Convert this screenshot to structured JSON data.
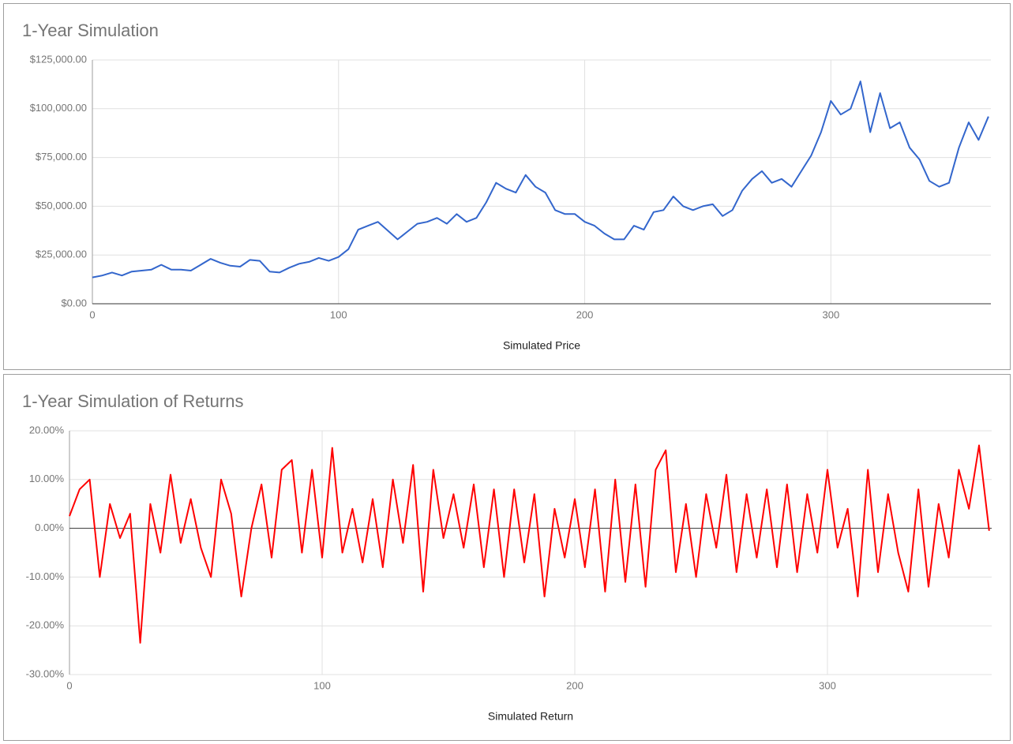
{
  "chart_data": [
    {
      "type": "line",
      "title": "1-Year Simulation",
      "x_label": "Simulated Price",
      "color": "#3366cc",
      "x": [
        0,
        4,
        8,
        12,
        16,
        20,
        24,
        28,
        32,
        36,
        40,
        44,
        48,
        52,
        56,
        60,
        64,
        68,
        72,
        76,
        80,
        84,
        88,
        92,
        96,
        100,
        104,
        108,
        112,
        116,
        120,
        124,
        128,
        132,
        136,
        140,
        144,
        148,
        152,
        156,
        160,
        164,
        168,
        172,
        176,
        180,
        184,
        188,
        192,
        196,
        200,
        204,
        208,
        212,
        216,
        220,
        224,
        228,
        232,
        236,
        240,
        244,
        248,
        252,
        256,
        260,
        264,
        268,
        272,
        276,
        280,
        284,
        288,
        292,
        296,
        300,
        304,
        308,
        312,
        316,
        320,
        324,
        328,
        332,
        336,
        340,
        344,
        348,
        352,
        356,
        360,
        364
      ],
      "values": [
        13500,
        14500,
        16000,
        14500,
        16500,
        17000,
        17500,
        20000,
        17500,
        17500,
        17000,
        20000,
        23000,
        21000,
        19500,
        19000,
        22500,
        22000,
        16500,
        16000,
        18500,
        20500,
        21500,
        23500,
        22000,
        24000,
        28000,
        38000,
        40000,
        42000,
        37500,
        33000,
        37000,
        41000,
        42000,
        44000,
        41000,
        46000,
        42000,
        44000,
        52000,
        62000,
        59000,
        57000,
        66000,
        60000,
        57000,
        48000,
        46000,
        46000,
        42000,
        40000,
        36000,
        33000,
        33000,
        40000,
        38000,
        47000,
        48000,
        55000,
        50000,
        48000,
        50000,
        51000,
        45000,
        48000,
        58000,
        64000,
        68000,
        62000,
        64000,
        60000,
        68000,
        76000,
        88000,
        104000,
        97000,
        100000,
        114000,
        88000,
        108000,
        90000,
        93000,
        80000,
        74000,
        63000,
        60000,
        62000,
        80000,
        93000,
        84000,
        96000
      ],
      "xlim": [
        0,
        365
      ],
      "xticks": [
        0,
        100,
        200,
        300
      ],
      "ylim": [
        0,
        125000
      ],
      "yticks": [
        {
          "value": 0,
          "label": "$0.00"
        },
        {
          "value": 25000,
          "label": "$25,000.00"
        },
        {
          "value": 50000,
          "label": "$50,000.00"
        },
        {
          "value": 75000,
          "label": "$75,000.00"
        },
        {
          "value": 100000,
          "label": "$100,000.00"
        },
        {
          "value": 125000,
          "label": "$125,000.00"
        }
      ],
      "grid": true
    },
    {
      "type": "line",
      "title": "1-Year Simulation of Returns",
      "x_label": "Simulated Return",
      "color": "#ff0000",
      "x": [
        0,
        4,
        8,
        12,
        16,
        20,
        24,
        28,
        32,
        36,
        40,
        44,
        48,
        52,
        56,
        60,
        64,
        68,
        72,
        76,
        80,
        84,
        88,
        92,
        96,
        100,
        104,
        108,
        112,
        116,
        120,
        124,
        128,
        132,
        136,
        140,
        144,
        148,
        152,
        156,
        160,
        164,
        168,
        172,
        176,
        180,
        184,
        188,
        192,
        196,
        200,
        204,
        208,
        212,
        216,
        220,
        224,
        228,
        232,
        236,
        240,
        244,
        248,
        252,
        256,
        260,
        264,
        268,
        272,
        276,
        280,
        284,
        288,
        292,
        296,
        300,
        304,
        308,
        312,
        316,
        320,
        324,
        328,
        332,
        336,
        340,
        344,
        348,
        352,
        356,
        360,
        364
      ],
      "values": [
        2.5,
        8,
        10,
        -10,
        5,
        -2,
        3,
        -23.5,
        5,
        -5,
        11,
        -3,
        6,
        -4,
        -10,
        10,
        3,
        -14,
        0,
        9,
        -6,
        12,
        14,
        -5,
        12,
        -6,
        16.5,
        -5,
        4,
        -7,
        6,
        -8,
        10,
        -3,
        13,
        -13,
        12,
        -2,
        7,
        -4,
        9,
        -8,
        8,
        -10,
        8,
        -7,
        7,
        -14,
        4,
        -6,
        6,
        -8,
        8,
        -13,
        10,
        -11,
        9,
        -12,
        12,
        16,
        -9,
        5,
        -10,
        7,
        -4,
        11,
        -9,
        7,
        -6,
        8,
        -8,
        9,
        -9,
        7,
        -5,
        12,
        -4,
        4,
        -14,
        12,
        -9,
        7,
        -5,
        -13,
        8,
        -12,
        5,
        -6,
        12,
        4,
        17,
        -0.5
      ],
      "xlim": [
        0,
        365
      ],
      "xticks": [
        0,
        100,
        200,
        300
      ],
      "ylim": [
        -30,
        20
      ],
      "yticks": [
        {
          "value": -30,
          "label": "-30.00%"
        },
        {
          "value": -20,
          "label": "-20.00%"
        },
        {
          "value": -10,
          "label": "-10.00%"
        },
        {
          "value": 0,
          "label": "0.00%"
        },
        {
          "value": 10,
          "label": "10.00%"
        },
        {
          "value": 20,
          "label": "20.00%"
        }
      ],
      "grid": true
    }
  ]
}
